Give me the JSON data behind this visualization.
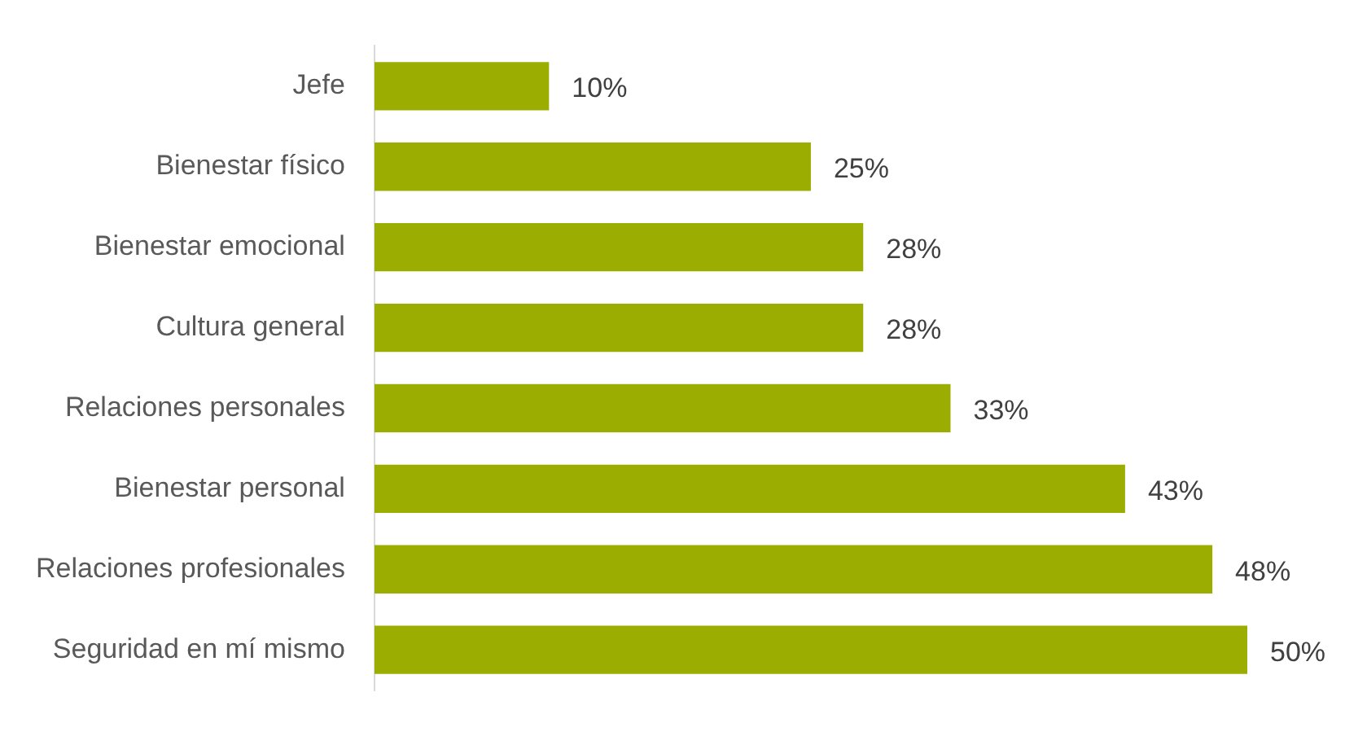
{
  "chart_data": {
    "type": "bar",
    "orientation": "horizontal",
    "categories": [
      "Jefe",
      "Bienestar físico",
      "Bienestar emocional",
      "Cultura general",
      "Relaciones personales",
      "Bienestar personal",
      "Relaciones profesionales",
      "Seguridad en mí mismo"
    ],
    "values": [
      10,
      25,
      28,
      28,
      33,
      43,
      48,
      50
    ],
    "value_labels": [
      "10%",
      "25%",
      "28%",
      "28%",
      "33%",
      "43%",
      "48%",
      "50%"
    ],
    "color": "#9bad00"
  }
}
